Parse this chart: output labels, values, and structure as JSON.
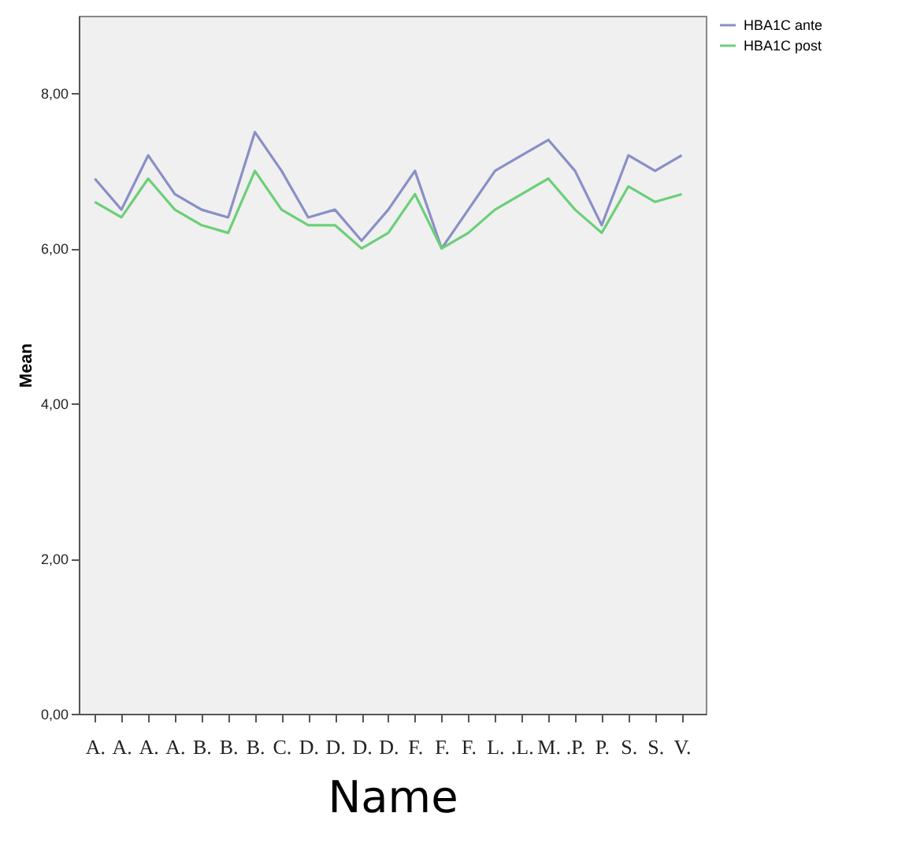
{
  "chart_data": {
    "type": "line",
    "xlabel": "Name",
    "ylabel": "Mean",
    "categories": [
      "A.",
      "A.",
      "A.",
      "A.",
      "B.",
      "B.",
      "B.",
      "C.",
      "D.",
      "D.",
      "D.",
      "D.",
      "F.",
      "F.",
      "F.",
      "L.",
      ".L.",
      "M.",
      ".P.",
      "P.",
      "S.",
      "S.",
      "V."
    ],
    "series": [
      {
        "name": "HBA1C ante",
        "color": "#8a8fc6",
        "values": [
          6.9,
          6.5,
          7.2,
          6.7,
          6.5,
          6.4,
          7.5,
          7.0,
          6.4,
          6.5,
          6.1,
          6.5,
          7.0,
          6.0,
          6.5,
          7.0,
          7.2,
          7.4,
          7.0,
          6.3,
          7.2,
          7.0,
          7.2
        ]
      },
      {
        "name": "HBA1C post",
        "color": "#6ccf78",
        "values": [
          6.6,
          6.4,
          6.9,
          6.5,
          6.3,
          6.2,
          7.0,
          6.5,
          6.3,
          6.3,
          6.0,
          6.2,
          6.7,
          6.0,
          6.2,
          6.5,
          6.7,
          6.9,
          6.5,
          6.2,
          6.8,
          6.6,
          6.7
        ]
      }
    ],
    "ylim": [
      0,
      9
    ],
    "yticks": [
      {
        "value": 0,
        "label": "0,00"
      },
      {
        "value": 2,
        "label": "2,00"
      },
      {
        "value": 4,
        "label": "4,00"
      },
      {
        "value": 6,
        "label": "6,00"
      },
      {
        "value": 8,
        "label": "8,00"
      }
    ],
    "grid": false,
    "legend": "top right",
    "marker": "none",
    "line_style": "solid"
  }
}
